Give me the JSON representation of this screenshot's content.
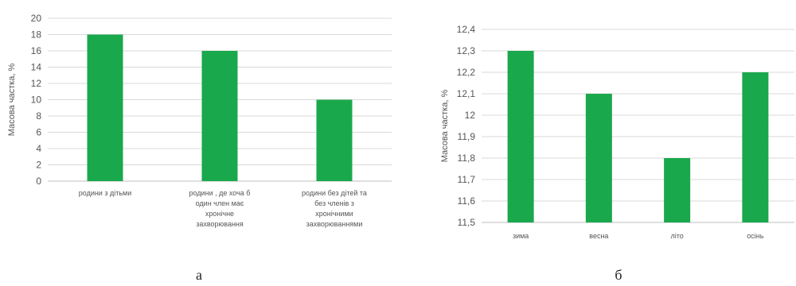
{
  "colors": {
    "bar": "#1aa84c",
    "grid": "#d9d9d9",
    "axis": "#bfbfbf"
  },
  "chart_data": [
    {
      "type": "bar",
      "panel_label": "а",
      "ylabel": "Масова частка, %",
      "ylim": [
        0,
        20
      ],
      "yticks": [
        "0",
        "2",
        "4",
        "6",
        "8",
        "10",
        "12",
        "14",
        "16",
        "18",
        "20"
      ],
      "categories": [
        [
          "родини з дітьми"
        ],
        [
          "родини , де хоча б",
          "один член має",
          "хронічне",
          "захворювання"
        ],
        [
          "родини без дітей та",
          "без членів з",
          "хронічними",
          "захворюваннями"
        ]
      ],
      "values": [
        18,
        16,
        10
      ]
    },
    {
      "type": "bar",
      "panel_label": "б",
      "ylabel": "Масова частка, %",
      "ylim": [
        11.5,
        12.4
      ],
      "yticks": [
        "11,5",
        "11,6",
        "11,7",
        "11,8",
        "11,9",
        "12",
        "12,1",
        "12,2",
        "12,3",
        "12,4"
      ],
      "categories": [
        [
          "зима"
        ],
        [
          "весна"
        ],
        [
          "літо"
        ],
        [
          "осінь"
        ]
      ],
      "values": [
        12.3,
        12.1,
        11.8,
        12.2
      ]
    }
  ]
}
